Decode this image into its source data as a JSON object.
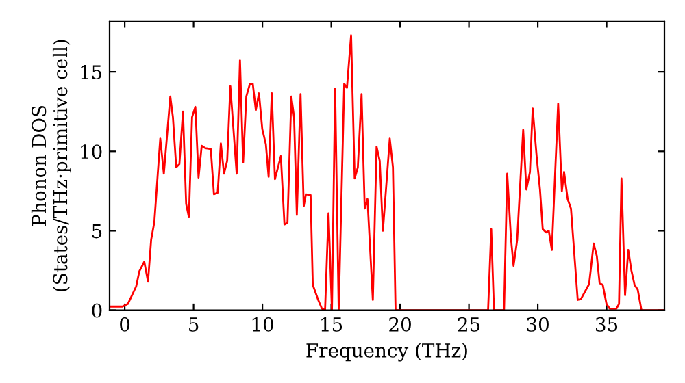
{
  "chart_data": {
    "type": "line",
    "xlabel": "Frequency (THz)",
    "ylabel": "Phonon DOS\n(States/THz·primitive cell)",
    "xlim": [
      -1.1,
      39.2
    ],
    "ylim": [
      0,
      18.2
    ],
    "xticks": [
      0,
      5,
      10,
      15,
      20,
      25,
      30,
      35
    ],
    "yticks": [
      0,
      5,
      10,
      15
    ],
    "grid": false,
    "legend": false,
    "series": [
      {
        "color": "#ff0000",
        "x": [
          -1.0,
          -0.17,
          0.23,
          0.83,
          1.06,
          1.42,
          1.69,
          1.92,
          2.15,
          2.58,
          2.84,
          3.31,
          3.5,
          3.74,
          3.97,
          4.23,
          4.46,
          4.66,
          4.89,
          5.13,
          5.36,
          5.59,
          5.85,
          6.25,
          6.48,
          6.75,
          6.98,
          7.21,
          7.44,
          7.67,
          8.13,
          8.37,
          8.6,
          8.83,
          9.09,
          9.3,
          9.52,
          9.75,
          9.99,
          10.25,
          10.45,
          10.68,
          10.91,
          11.34,
          11.6,
          11.82,
          12.1,
          12.3,
          12.5,
          12.77,
          13.0,
          13.16,
          13.5,
          13.66,
          14.05,
          14.32,
          14.55,
          14.8,
          15.05,
          15.28,
          15.54,
          15.94,
          16.14,
          16.44,
          16.7,
          16.93,
          17.2,
          17.43,
          17.63,
          18.02,
          18.29,
          18.52,
          18.75,
          19.25,
          19.48,
          19.67,
          26.39,
          26.62,
          26.82,
          27.55,
          27.78,
          28.05,
          28.24,
          28.5,
          28.94,
          29.17,
          29.43,
          29.63,
          29.93,
          30.16,
          30.36,
          30.6,
          30.8,
          31.02,
          31.48,
          31.75,
          31.91,
          32.17,
          32.41,
          32.9,
          33.13,
          33.73,
          34.06,
          34.29,
          34.49,
          34.72,
          34.99,
          35.22,
          35.71,
          35.9,
          36.08,
          36.34,
          36.57,
          36.8,
          37.03,
          37.26,
          37.53,
          39.2
        ],
        "values": [
          0.23,
          0.23,
          0.4,
          1.5,
          2.45,
          3.05,
          1.8,
          4.45,
          5.55,
          10.8,
          8.6,
          13.45,
          12.15,
          9.0,
          9.2,
          12.5,
          6.7,
          5.85,
          12.15,
          12.8,
          8.35,
          10.35,
          10.2,
          10.15,
          7.3,
          7.4,
          10.5,
          8.6,
          9.4,
          14.1,
          8.6,
          15.75,
          9.3,
          13.45,
          14.25,
          14.25,
          12.6,
          13.65,
          11.4,
          10.45,
          8.4,
          13.65,
          8.25,
          9.7,
          5.4,
          5.5,
          13.45,
          12.15,
          6.0,
          13.6,
          6.55,
          7.3,
          7.25,
          1.6,
          0.65,
          0.1,
          0,
          6.1,
          0,
          13.95,
          0,
          14.25,
          14.0,
          17.3,
          8.3,
          9.0,
          13.6,
          6.4,
          7.0,
          0.65,
          10.3,
          9.4,
          5.0,
          10.8,
          9.0,
          0,
          0,
          5.1,
          0,
          0,
          8.6,
          4.55,
          2.8,
          4.4,
          11.35,
          7.6,
          8.7,
          12.7,
          9.55,
          7.6,
          5.1,
          4.9,
          5.0,
          3.8,
          13.0,
          7.5,
          8.7,
          7.0,
          6.4,
          0.65,
          0.7,
          1.65,
          4.2,
          3.4,
          1.7,
          1.6,
          0.4,
          0.1,
          0.1,
          0.4,
          8.3,
          0.95,
          3.8,
          2.5,
          1.6,
          1.3,
          0,
          0
        ]
      }
    ]
  }
}
